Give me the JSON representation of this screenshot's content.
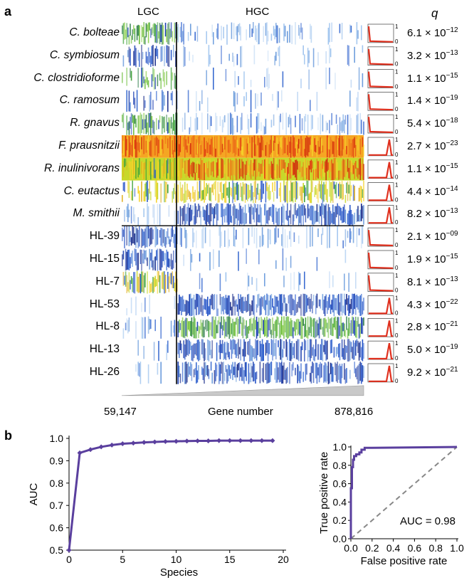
{
  "panel_a": {
    "letter": "a",
    "group_low": "LGC",
    "group_high": "HGC",
    "q_header": "q",
    "rows": [
      {
        "name": "C. bolteae",
        "italic": true,
        "q": "6.1",
        "q_exp": "−12"
      },
      {
        "name": "C. symbiosum",
        "italic": true,
        "q": "3.2",
        "q_exp": "−13"
      },
      {
        "name": "C. clostridioforme",
        "italic": true,
        "q": "1.1",
        "q_exp": "−15"
      },
      {
        "name": "C. ramosum",
        "italic": true,
        "q": "1.4",
        "q_exp": "−19"
      },
      {
        "name": "R. gnavus",
        "italic": true,
        "q": "5.4",
        "q_exp": "−18"
      },
      {
        "name": "F. prausnitzii",
        "italic": true,
        "q": "2.7",
        "q_exp": "−23"
      },
      {
        "name": "R. inulinivorans",
        "italic": true,
        "q": "1.1",
        "q_exp": "−15"
      },
      {
        "name": "C. eutactus",
        "italic": true,
        "q": "4.4",
        "q_exp": "−14"
      },
      {
        "name": "M. smithii",
        "italic": true,
        "q": "8.2",
        "q_exp": "−13"
      },
      {
        "name": "HL-39",
        "italic": false,
        "q": "2.1",
        "q_exp": "−09"
      },
      {
        "name": "HL-15",
        "italic": false,
        "q": "1.9",
        "q_exp": "−15"
      },
      {
        "name": "HL-7",
        "italic": false,
        "q": "8.1",
        "q_exp": "−13"
      },
      {
        "name": "HL-53",
        "italic": false,
        "q": "4.3",
        "q_exp": "−22"
      },
      {
        "name": "HL-8",
        "italic": false,
        "q": "2.8",
        "q_exp": "−21"
      },
      {
        "name": "HL-13",
        "italic": false,
        "q": "5.0",
        "q_exp": "−19"
      },
      {
        "name": "HL-26",
        "italic": false,
        "q": "9.2",
        "q_exp": "−21"
      }
    ],
    "mini_axis_top": "1",
    "mini_axis_bottom": "0",
    "x_start": "59,147",
    "x_label": "Gene number",
    "x_end": "878,816",
    "colors": {
      "low": "#1a3fb0",
      "mid": "#3fa23a",
      "high": "#f5d22a",
      "top": "#e23b12",
      "curve": "#e0301e"
    }
  },
  "panel_b": {
    "letter": "b",
    "chart_data": [
      {
        "type": "line",
        "title": "",
        "xlabel": "Species",
        "ylabel": "AUC",
        "xlim": [
          0,
          20
        ],
        "ylim": [
          0.5,
          1.0
        ],
        "xticks": [
          "0",
          "5",
          "10",
          "15",
          "20"
        ],
        "yticks": [
          "0.5",
          "0.6",
          "0.7",
          "0.8",
          "0.9",
          "1.0"
        ],
        "x": [
          0,
          1,
          2,
          3,
          4,
          5,
          6,
          7,
          8,
          9,
          10,
          11,
          12,
          13,
          14,
          15,
          16,
          17,
          18,
          19
        ],
        "values": [
          0.5,
          0.935,
          0.95,
          0.962,
          0.97,
          0.976,
          0.979,
          0.982,
          0.984,
          0.986,
          0.987,
          0.988,
          0.989,
          0.989,
          0.99,
          0.99,
          0.99,
          0.99,
          0.99,
          0.99
        ],
        "color": "#5a3f9e"
      },
      {
        "type": "line",
        "title": "",
        "xlabel": "False positive rate",
        "ylabel": "True positive rate",
        "xlim": [
          0,
          1
        ],
        "ylim": [
          0,
          1
        ],
        "xticks": [
          "0.0",
          "0.2",
          "0.4",
          "0.6",
          "0.8",
          "1.0"
        ],
        "yticks": [
          "0.0",
          "0.2",
          "0.4",
          "0.6",
          "0.8",
          "1.0"
        ],
        "roc_x": [
          0,
          0,
          0.01,
          0.01,
          0.02,
          0.02,
          0.03,
          0.03,
          0.05,
          0.05,
          0.08,
          0.08,
          0.1,
          0.1,
          0.13,
          0.13,
          0.2,
          1.0
        ],
        "roc_y": [
          0,
          0.55,
          0.55,
          0.78,
          0.78,
          0.86,
          0.86,
          0.9,
          0.9,
          0.92,
          0.92,
          0.94,
          0.94,
          0.97,
          0.97,
          0.99,
          0.99,
          1.0
        ],
        "annotation": "AUC = 0.98",
        "color": "#5a3f9e",
        "diagonal_color": "#888888"
      }
    ]
  }
}
